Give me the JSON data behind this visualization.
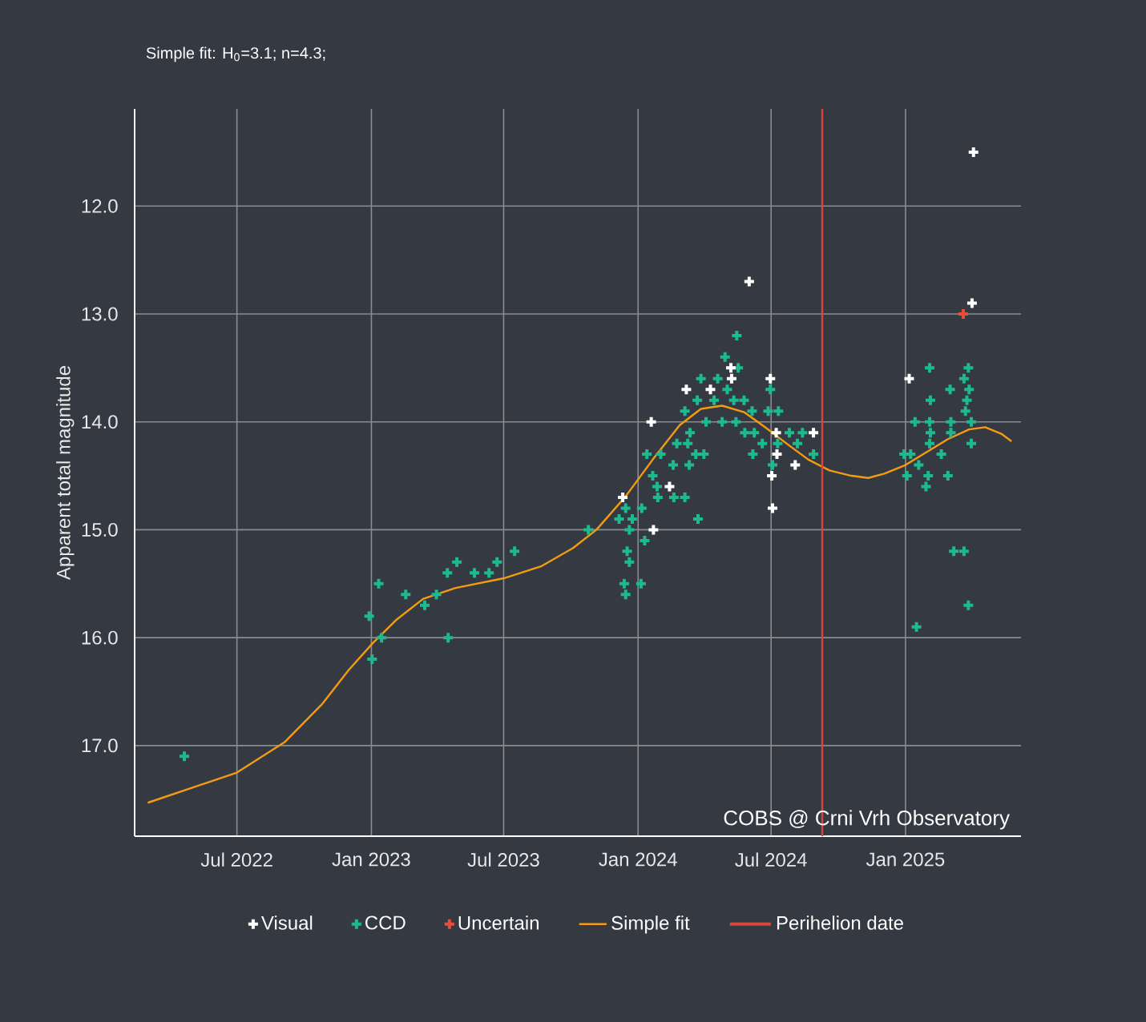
{
  "chart_data": {
    "type": "scatter",
    "title": "Simple fit: H$_{0}$=3.1; n=4.3;",
    "ylabel": "Apparent total magnitude",
    "annotations": [
      "COBS @ Crni Vrh Observatory"
    ],
    "xlim": [
      "2022-02-11",
      "2025-06-08"
    ],
    "ylim": [
      17.84,
      11.1
    ],
    "xticks": [
      {
        "value": "2022-07-01",
        "label": "Jul 2022"
      },
      {
        "value": "2023-01-01",
        "label": "Jan 2023"
      },
      {
        "value": "2023-07-01",
        "label": "Jul 2023"
      },
      {
        "value": "2024-01-01",
        "label": "Jan 2024"
      },
      {
        "value": "2024-07-01",
        "label": "Jul 2024"
      },
      {
        "value": "2025-01-01",
        "label": "Jan 2025"
      }
    ],
    "yticks": [
      {
        "value": 12,
        "label": "12.0"
      },
      {
        "value": 13,
        "label": "13.0"
      },
      {
        "value": 14,
        "label": "14.0"
      },
      {
        "value": 15,
        "label": "15.0"
      },
      {
        "value": 16,
        "label": "16.0"
      },
      {
        "value": 17,
        "label": "17.0"
      }
    ],
    "grid": true,
    "legend": "bottom",
    "marker": "cross",
    "series": [
      {
        "name": "Visual",
        "color": "#ffffff",
        "x": [
          "2024-06-01",
          "2024-03-07",
          "2024-01-19",
          "2023-12-11",
          "2024-02-13",
          "2024-01-22",
          "2024-05-07",
          "2024-05-08",
          "2024-06-30",
          "2024-07-08",
          "2024-07-09",
          "2024-07-02",
          "2024-07-03",
          "2024-08-03",
          "2024-08-28",
          "2024-04-09",
          "2025-04-04",
          "2025-04-02",
          "2025-01-06"
        ],
        "values": [
          12.7,
          13.7,
          14.0,
          14.7,
          14.6,
          15.0,
          13.5,
          13.6,
          13.6,
          14.1,
          14.3,
          14.5,
          14.8,
          14.4,
          14.1,
          13.7,
          11.5,
          12.9,
          13.6
        ]
      },
      {
        "name": "CCD",
        "color": "#1db98f",
        "x": [
          "2022-04-20",
          "2022-12-29",
          "2023-01-11",
          "2023-01-02",
          "2023-01-15",
          "2023-02-17",
          "2023-03-15",
          "2023-03-31",
          "2023-04-15",
          "2023-04-28",
          "2023-04-16",
          "2023-05-22",
          "2023-06-11",
          "2023-06-22",
          "2023-07-16",
          "2023-10-25",
          "2023-12-13",
          "2023-12-15",
          "2024-01-05",
          "2023-12-17",
          "2023-12-20",
          "2023-12-06",
          "2023-12-24",
          "2023-12-15",
          "2024-01-06",
          "2023-12-20",
          "2024-01-10",
          "2024-01-27",
          "2024-01-21",
          "2024-01-13",
          "2024-02-01",
          "2024-02-18",
          "2024-02-19",
          "2024-03-05",
          "2024-03-11",
          "2024-02-23",
          "2024-03-09",
          "2024-03-20",
          "2024-03-31",
          "2024-03-05",
          "2024-03-12",
          "2024-03-22",
          "2024-03-27",
          "2024-04-03",
          "2024-04-14",
          "2024-04-19",
          "2024-04-29",
          "2024-05-02",
          "2024-05-11",
          "2024-05-15",
          "2024-05-17",
          "2024-05-14",
          "2024-04-25",
          "2024-05-25",
          "2024-06-05",
          "2024-05-26",
          "2024-06-06",
          "2024-06-08",
          "2024-06-19",
          "2024-06-27",
          "2024-06-30",
          "2024-07-03",
          "2024-07-11",
          "2024-07-10",
          "2024-07-26",
          "2024-08-13",
          "2024-08-06",
          "2024-08-28",
          "2024-03-23",
          "2024-01-28",
          "2025-02-03",
          "2025-03-28",
          "2025-03-22",
          "2025-03-03",
          "2025-03-29",
          "2025-02-04",
          "2025-03-26",
          "2025-03-24",
          "2025-01-14",
          "2025-02-03",
          "2025-03-04",
          "2025-04-01",
          "2025-02-04",
          "2025-03-04",
          "2025-02-03",
          "2025-04-01",
          "2024-12-30",
          "2025-01-08",
          "2025-02-19",
          "2025-01-19",
          "2025-01-03",
          "2025-02-01",
          "2025-02-28",
          "2025-01-29",
          "2025-03-08",
          "2025-03-22",
          "2025-03-28",
          "2025-01-16"
        ],
        "values": [
          17.1,
          15.8,
          15.5,
          16.2,
          16.0,
          15.6,
          15.7,
          15.6,
          15.4,
          15.3,
          16.0,
          15.4,
          15.4,
          15.3,
          15.2,
          15.0,
          15.5,
          15.6,
          15.5,
          15.2,
          15.3,
          14.9,
          14.9,
          14.8,
          14.8,
          15.0,
          15.1,
          14.6,
          14.5,
          14.3,
          14.3,
          14.4,
          14.7,
          14.7,
          14.4,
          14.2,
          14.2,
          14.3,
          14.3,
          13.9,
          14.1,
          13.8,
          13.6,
          14.0,
          13.8,
          13.6,
          13.4,
          13.7,
          13.8,
          13.2,
          13.5,
          14.0,
          14.0,
          13.8,
          13.9,
          14.1,
          14.3,
          14.1,
          14.2,
          13.9,
          13.7,
          14.4,
          13.9,
          14.2,
          14.1,
          14.1,
          14.2,
          14.3,
          14.9,
          14.7,
          13.5,
          13.5,
          13.6,
          13.7,
          13.7,
          13.8,
          13.8,
          13.9,
          14.0,
          14.0,
          14.0,
          14.0,
          14.1,
          14.1,
          14.2,
          14.2,
          14.3,
          14.3,
          14.3,
          14.4,
          14.5,
          14.5,
          14.5,
          14.6,
          15.2,
          15.2,
          15.7,
          15.9
        ]
      },
      {
        "name": "Uncertain",
        "color": "#e74c3c",
        "x": [
          "2025-03-21"
        ],
        "values": [
          13.0
        ]
      },
      {
        "name": "Simple fit",
        "type": "line",
        "marker": "none",
        "color": "#f39c12",
        "x": [
          "2022-03-01",
          "2022-07-01",
          "2022-09-04",
          "2022-10-25",
          "2022-12-01",
          "2023-01-03",
          "2023-02-05",
          "2023-03-13",
          "2023-04-26",
          "2023-07-01",
          "2023-08-21",
          "2023-10-04",
          "2023-11-05",
          "2023-12-15",
          "2024-01-21",
          "2024-02-27",
          "2024-03-27",
          "2024-04-25",
          "2024-05-25",
          "2024-06-23",
          "2024-07-22",
          "2024-08-21",
          "2024-09-19",
          "2024-10-19",
          "2024-11-11",
          "2024-12-03",
          "2025-01-01",
          "2025-01-30",
          "2025-02-28",
          "2025-03-29",
          "2025-04-20",
          "2025-05-12",
          "2025-05-26"
        ],
        "values": [
          17.53,
          17.25,
          16.97,
          16.62,
          16.3,
          16.05,
          15.83,
          15.64,
          15.54,
          15.45,
          15.34,
          15.17,
          15.0,
          14.69,
          14.35,
          14.03,
          13.88,
          13.85,
          13.91,
          14.05,
          14.2,
          14.35,
          14.45,
          14.5,
          14.52,
          14.48,
          14.4,
          14.28,
          14.16,
          14.07,
          14.05,
          14.11,
          14.18
        ]
      }
    ],
    "ref_lines": [
      {
        "axis": "x",
        "value": "2024-09-09",
        "label": "Perihelion date",
        "color": "#d9453a"
      }
    ]
  }
}
